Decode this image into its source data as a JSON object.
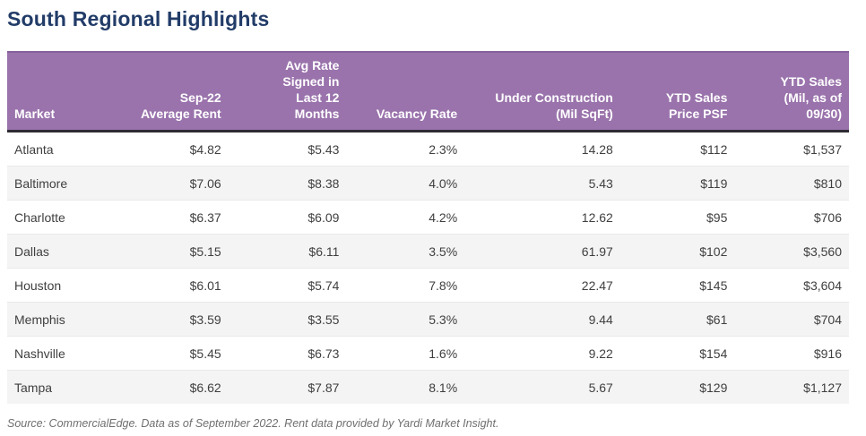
{
  "page": {
    "title": "South Regional Highlights",
    "source_note": "Source: CommercialEdge. Data as of September 2022. Rent data provided by Yardi Market Insight."
  },
  "colors": {
    "title_text": "#223c68",
    "header_bg": "#9a73ac",
    "header_top_border": "#84619b",
    "header_bottom_border": "#2e2b33",
    "row_alt_bg": "#f4f4f4",
    "body_text": "#3f3f3f",
    "footer_text": "#6f6f6f"
  },
  "table": {
    "columns": [
      {
        "key": "market",
        "label_lines": [
          "Market"
        ],
        "align": "left",
        "width": "15%"
      },
      {
        "key": "avg_rent",
        "label_lines": [
          "Sep-22",
          "Average Rent"
        ],
        "align": "right",
        "width": "11%"
      },
      {
        "key": "avg_rate_signed_12mo",
        "label_lines": [
          "Avg Rate",
          "Signed in",
          "Last 12",
          "Months"
        ],
        "align": "right",
        "width": "14%"
      },
      {
        "key": "vacancy_rate",
        "label_lines": [
          "Vacancy Rate"
        ],
        "align": "right",
        "width": "14%"
      },
      {
        "key": "under_construction",
        "label_lines": [
          "Under Construction",
          "(Mil SqFt)"
        ],
        "align": "right",
        "width": "19%"
      },
      {
        "key": "ytd_sales_price_psf",
        "label_lines": [
          "YTD Sales",
          "Price PSF"
        ],
        "align": "right",
        "width": "13.5%"
      },
      {
        "key": "ytd_sales_mil",
        "label_lines": [
          "YTD Sales",
          "(Mil, as of",
          "09/30)"
        ],
        "align": "right",
        "width": "13.5%"
      }
    ],
    "rows": [
      {
        "market": "Atlanta",
        "avg_rent": "$4.82",
        "avg_rate_signed_12mo": "$5.43",
        "vacancy_rate": "2.3%",
        "under_construction": "14.28",
        "ytd_sales_price_psf": "$112",
        "ytd_sales_mil": "$1,537"
      },
      {
        "market": "Baltimore",
        "avg_rent": "$7.06",
        "avg_rate_signed_12mo": "$8.38",
        "vacancy_rate": "4.0%",
        "under_construction": "5.43",
        "ytd_sales_price_psf": "$119",
        "ytd_sales_mil": "$810"
      },
      {
        "market": "Charlotte",
        "avg_rent": "$6.37",
        "avg_rate_signed_12mo": "$6.09",
        "vacancy_rate": "4.2%",
        "under_construction": "12.62",
        "ytd_sales_price_psf": "$95",
        "ytd_sales_mil": "$706"
      },
      {
        "market": "Dallas",
        "avg_rent": "$5.15",
        "avg_rate_signed_12mo": "$6.11",
        "vacancy_rate": "3.5%",
        "under_construction": "61.97",
        "ytd_sales_price_psf": "$102",
        "ytd_sales_mil": "$3,560"
      },
      {
        "market": "Houston",
        "avg_rent": "$6.01",
        "avg_rate_signed_12mo": "$5.74",
        "vacancy_rate": "7.8%",
        "under_construction": "22.47",
        "ytd_sales_price_psf": "$145",
        "ytd_sales_mil": "$3,604"
      },
      {
        "market": "Memphis",
        "avg_rent": "$3.59",
        "avg_rate_signed_12mo": "$3.55",
        "vacancy_rate": "5.3%",
        "under_construction": "9.44",
        "ytd_sales_price_psf": "$61",
        "ytd_sales_mil": "$704"
      },
      {
        "market": "Nashville",
        "avg_rent": "$5.45",
        "avg_rate_signed_12mo": "$6.73",
        "vacancy_rate": "1.6%",
        "under_construction": "9.22",
        "ytd_sales_price_psf": "$154",
        "ytd_sales_mil": "$916"
      },
      {
        "market": "Tampa",
        "avg_rent": "$6.62",
        "avg_rate_signed_12mo": "$7.87",
        "vacancy_rate": "8.1%",
        "under_construction": "5.67",
        "ytd_sales_price_psf": "$129",
        "ytd_sales_mil": "$1,127"
      }
    ]
  },
  "chart_data": {
    "type": "table",
    "title": "South Regional Highlights",
    "columns": [
      "Market",
      "Sep-22 Average Rent ($)",
      "Avg Rate Signed in Last 12 Months ($)",
      "Vacancy Rate (%)",
      "Under Construction (Mil SqFt)",
      "YTD Sales Price PSF ($)",
      "YTD Sales (Mil $, as of 09/30)"
    ],
    "rows": [
      [
        "Atlanta",
        4.82,
        5.43,
        2.3,
        14.28,
        112,
        1537
      ],
      [
        "Baltimore",
        7.06,
        8.38,
        4.0,
        5.43,
        119,
        810
      ],
      [
        "Charlotte",
        6.37,
        6.09,
        4.2,
        12.62,
        95,
        706
      ],
      [
        "Dallas",
        5.15,
        6.11,
        3.5,
        61.97,
        102,
        3560
      ],
      [
        "Houston",
        6.01,
        5.74,
        7.8,
        22.47,
        145,
        3604
      ],
      [
        "Memphis",
        3.59,
        3.55,
        5.3,
        9.44,
        61,
        704
      ],
      [
        "Nashville",
        5.45,
        6.73,
        1.6,
        9.22,
        154,
        916
      ],
      [
        "Tampa",
        6.62,
        7.87,
        8.1,
        5.67,
        129,
        1127
      ]
    ],
    "source": "Source: CommercialEdge. Data as of September 2022. Rent data provided by Yardi Market Insight."
  }
}
